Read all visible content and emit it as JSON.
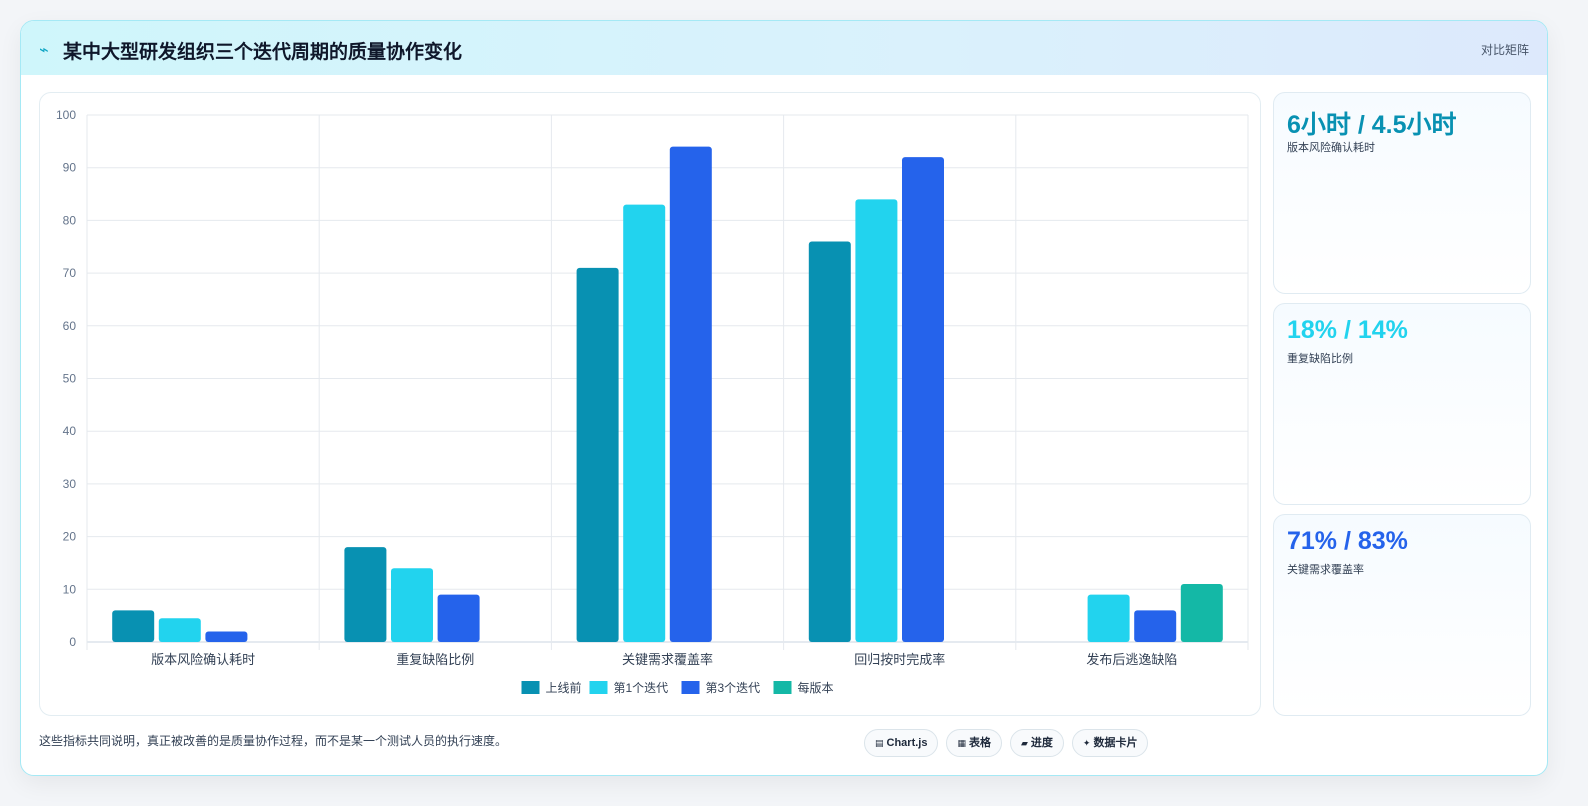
{
  "header": {
    "icon": "bolt-icon",
    "icon_glyph": "⌁",
    "title": "某中大型研发组织三个迭代周期的质量协作变化",
    "right_label": "对比矩阵"
  },
  "side_cards": [
    {
      "value": "6小时 / 4.5小时",
      "label": "版本风险确认耗时",
      "color": "#0891b2"
    },
    {
      "value": "18% / 14%",
      "label": "重复缺陷比例",
      "color": "#22d3ee"
    },
    {
      "value": "71% / 83%",
      "label": "关键需求覆盖率",
      "color": "#2563eb"
    }
  ],
  "footer": {
    "note": "这些指标共同说明，真正被改善的是质量协作过程，而不是某一个测试人员的执行速度。",
    "chips": [
      {
        "icon": "chart-icon",
        "glyph": "▤",
        "label": "Chart.js"
      },
      {
        "icon": "table-icon",
        "glyph": "▦",
        "label": "表格"
      },
      {
        "icon": "progress-icon",
        "glyph": "▰",
        "label": "进度"
      },
      {
        "icon": "sparkle-icon",
        "glyph": "✦",
        "label": "数据卡片"
      }
    ]
  },
  "chart_data": {
    "type": "bar",
    "categories": [
      "版本风险确认耗时",
      "重复缺陷比例",
      "关键需求覆盖率",
      "回归按时完成率",
      "发布后逃逸缺陷"
    ],
    "series": [
      {
        "name": "上线前",
        "color": "#0891b2",
        "values": [
          6,
          18,
          71,
          76,
          null
        ]
      },
      {
        "name": "第1个迭代",
        "color": "#22d3ee",
        "values": [
          4.5,
          14,
          83,
          84,
          9
        ]
      },
      {
        "name": "第3个迭代",
        "color": "#2563eb",
        "values": [
          2,
          9,
          94,
          92,
          6
        ]
      },
      {
        "name": "每版本",
        "color": "#14b8a6",
        "values": [
          null,
          null,
          null,
          null,
          11
        ]
      }
    ],
    "ylim": [
      0,
      100
    ],
    "yticks": [
      0,
      10,
      20,
      30,
      40,
      50,
      60,
      70,
      80,
      90,
      100
    ],
    "grid": true,
    "legend": "bottom-center"
  }
}
